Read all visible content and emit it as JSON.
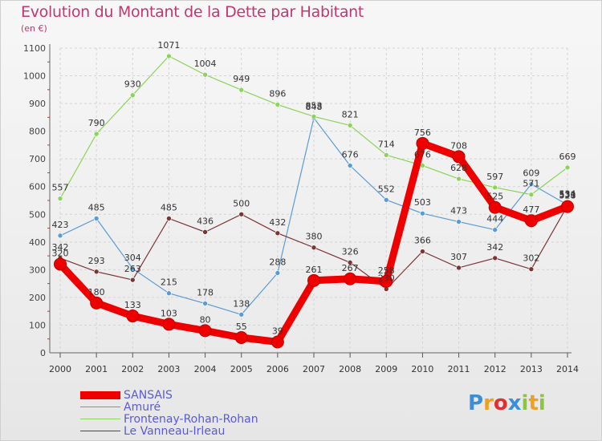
{
  "chart_data": {
    "type": "line",
    "title": "Evolution du Montant de la Dette par Habitant",
    "subtitle": "(en €)",
    "x": [
      "2000",
      "2001",
      "2002",
      "2003",
      "2004",
      "2005",
      "2006",
      "2007",
      "2008",
      "2009",
      "2010",
      "2011",
      "2012",
      "2013",
      "2014"
    ],
    "ylim": [
      0,
      1100
    ],
    "yticks": [
      0,
      100,
      200,
      300,
      400,
      500,
      600,
      700,
      800,
      900,
      1000,
      1100
    ],
    "grid": true,
    "legend_position": "bottom-left",
    "series": [
      {
        "name": "SANSAIS",
        "color": "#ee0000",
        "emphasis": true,
        "values": [
          320,
          180,
          133,
          103,
          80,
          55,
          39,
          261,
          267,
          258,
          756,
          708,
          525,
          477,
          528
        ]
      },
      {
        "name": "Amuré",
        "color": "#5b9bd5",
        "values": [
          423,
          485,
          304,
          215,
          178,
          138,
          288,
          848,
          676,
          552,
          503,
          473,
          444,
          609,
          534
        ]
      },
      {
        "name": "Frontenay-Rohan-Rohan",
        "color": "#8cd35a",
        "values": [
          557,
          790,
          930,
          1071,
          1004,
          949,
          896,
          853,
          821,
          714,
          676,
          628,
          597,
          571,
          669
        ]
      },
      {
        "name": "Le Vanneau-Irleau",
        "color": "#7a3535",
        "values": [
          342,
          293,
          263,
          485,
          436,
          500,
          432,
          380,
          326,
          230,
          366,
          307,
          342,
          302,
          531
        ]
      }
    ]
  },
  "logo": {
    "text": "Proxiti",
    "letters": [
      "P",
      "r",
      "o",
      "x",
      "i",
      "t",
      "i"
    ],
    "colors": [
      "#3a8fd8",
      "#f0a020",
      "#e03030",
      "#3a8fd8",
      "#8cc63f",
      "#f0a020",
      "#8cc63f"
    ]
  }
}
